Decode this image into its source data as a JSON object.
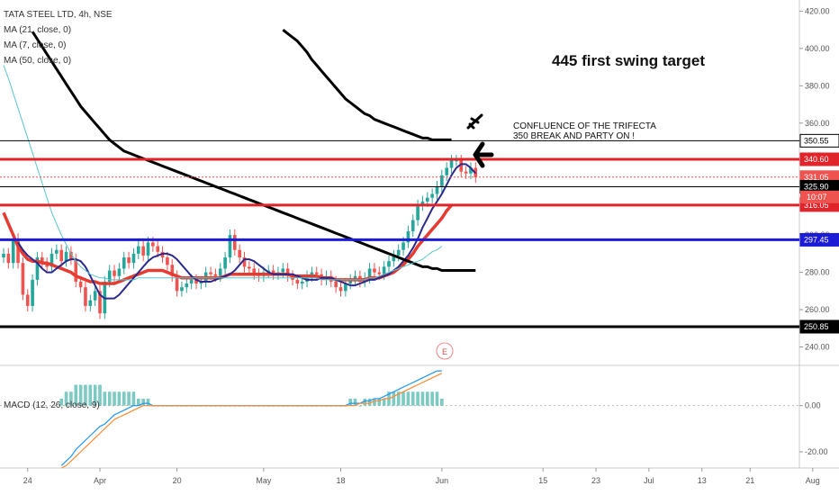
{
  "header": {
    "symbol_line": "TATA STEEL LTD, 4h, NSE",
    "studies": [
      "MA (21, close, 0)",
      "MA (7, close, 0)",
      "MA (50, close, 0)"
    ],
    "macd_label": "MACD (12, 26, close, 9)"
  },
  "annotations": {
    "target": "445 first swing target",
    "confluence_line1": "CONFLUENCE OF THE TRIFECTA",
    "confluence_line2": "350 BREAK AND PARTY ON !",
    "earnings_marker": "E",
    "arrow_icon": "left-arrow-icon",
    "plane_icon": "airplane-icon"
  },
  "colors": {
    "red_level": "#e0242a",
    "blue_level": "#1c1cd6",
    "black_level": "#000000",
    "ma7": "#2b2a8c",
    "ma21": "#e43b32",
    "ma50": "#000000",
    "teal_ma": "#58c6cc",
    "up_candle": "#26a69a",
    "down_candle": "#ef5350",
    "macd_line": "#2196f3",
    "signal_line": "#ff8a33"
  },
  "chart_data": {
    "type": "line",
    "title": "TATA STEEL LTD, 4h, NSE",
    "price_axis": {
      "ticks": [
        240,
        260,
        280,
        300,
        320,
        340,
        360,
        380,
        400,
        420
      ],
      "tick_labels": [
        "240.00",
        "260.00",
        "280.00",
        "300.00",
        "320.00",
        "340.00",
        "360.00",
        "380.00",
        "400.00",
        "420.00"
      ],
      "ylim": [
        233,
        426
      ]
    },
    "price_labels": [
      {
        "value": 350.55,
        "label": "350.55",
        "color": "#000000",
        "text_color": "#000000"
      },
      {
        "value": 340.6,
        "label": "340.60",
        "color": "#e0242a",
        "text_color": "#ffffff"
      },
      {
        "value": 331.05,
        "label": "331.05",
        "color": "#ef5350",
        "text_color": "#ffffff"
      },
      {
        "value": 325.9,
        "label": "325.90",
        "color": "#000000",
        "text_color": "#ffffff"
      },
      {
        "value": 316.05,
        "label": "316.05",
        "color": "#e0242a",
        "text_color": "#ffffff"
      },
      {
        "value": 297.45,
        "label": "297.45",
        "color": "#1c1cd6",
        "text_color": "#ffffff"
      },
      {
        "value": 250.85,
        "label": "250.85",
        "color": "#000000",
        "text_color": "#ffffff"
      }
    ],
    "countdown_label": "10:07",
    "horizontal_levels": [
      {
        "value": 350.55,
        "color": "#000000",
        "style": "thin"
      },
      {
        "value": 340.6,
        "color": "#e0242a",
        "style": "thick"
      },
      {
        "value": 331.05,
        "color": "#ef5350",
        "style": "dotted"
      },
      {
        "value": 325.9,
        "color": "#000000",
        "style": "thin"
      },
      {
        "value": 316.05,
        "color": "#e0242a",
        "style": "thick"
      },
      {
        "value": 297.45,
        "color": "#1c1cd6",
        "style": "thick"
      },
      {
        "value": 250.85,
        "color": "#000000",
        "style": "thick"
      }
    ],
    "x_axis": {
      "tick_labels": [
        "24",
        "Apr",
        "20",
        "May",
        "18",
        "Jun",
        "15",
        "23",
        "Jul",
        "13",
        "21",
        "Aug"
      ],
      "tick_index": [
        5,
        20,
        36,
        54,
        70,
        91,
        112,
        123,
        134,
        145,
        155,
        168
      ]
    },
    "candles_close": [
      290,
      285,
      298,
      285,
      268,
      262,
      276,
      288,
      285,
      283,
      290,
      292,
      286,
      291,
      287,
      275,
      272,
      262,
      265,
      270,
      258,
      275,
      281,
      278,
      282,
      288,
      285,
      290,
      294,
      289,
      296,
      294,
      291,
      288,
      284,
      278,
      270,
      272,
      274,
      276,
      274,
      275,
      280,
      279,
      278,
      282,
      288,
      300,
      292,
      288,
      283,
      282,
      279,
      278,
      280,
      281,
      279,
      280,
      282,
      278,
      276,
      274,
      275,
      278,
      280,
      279,
      276,
      278,
      275,
      272,
      270,
      274,
      276,
      278,
      275,
      277,
      282,
      280,
      279,
      283,
      286,
      289,
      292,
      296,
      302,
      308,
      316,
      318,
      320,
      322,
      326,
      332,
      336,
      340,
      340,
      334,
      333,
      336,
      331
    ],
    "series": [
      {
        "name": "MA (21, close, 0)",
        "values": [
          312,
          306,
          300,
          294,
          290,
          287,
          286,
          286,
          285,
          285,
          284,
          283,
          282,
          281,
          280,
          278,
          277,
          276,
          275,
          275,
          274,
          274,
          274,
          274,
          275,
          276,
          277,
          278,
          279,
          280,
          281,
          281,
          281,
          281,
          280,
          279,
          278,
          277,
          277,
          277,
          277,
          277,
          277,
          277,
          277,
          277,
          278,
          279,
          279,
          279,
          279,
          279,
          279,
          279,
          279,
          279,
          279,
          279,
          279,
          279,
          278,
          278,
          278,
          278,
          278,
          278,
          277,
          277,
          277,
          276,
          276,
          276,
          276,
          276,
          276,
          276,
          277,
          277,
          277,
          278,
          279,
          280,
          282,
          284,
          287,
          290,
          294,
          297,
          300,
          303,
          306,
          309,
          313,
          316
        ]
      },
      {
        "name": "MA (7, close, 0)",
        "values": [
          296,
          292,
          289,
          287,
          285,
          282,
          280,
          280,
          282,
          284,
          286,
          287,
          287,
          286,
          283,
          278,
          273,
          268,
          266,
          266,
          266,
          268,
          271,
          274,
          277,
          280,
          283,
          286,
          288,
          289,
          290,
          290,
          289,
          287,
          284,
          281,
          278,
          276,
          275,
          275,
          275,
          276,
          277,
          278,
          279,
          281,
          284,
          287,
          287,
          286,
          284,
          282,
          280,
          279,
          279,
          279,
          279,
          279,
          278,
          277,
          276,
          276,
          276,
          277,
          277,
          277,
          276,
          275,
          274,
          273,
          273,
          274,
          275,
          276,
          276,
          277,
          278,
          279,
          281,
          283,
          286,
          289,
          293,
          298,
          304,
          309,
          314,
          318,
          322,
          327,
          332,
          336,
          338,
          338,
          336,
          333
        ]
      },
      {
        "name": "MA (50, close, 0)",
        "values": [
          409,
          405,
          401,
          397,
          393,
          389,
          385,
          381,
          377,
          373,
          369,
          366,
          363,
          360,
          357,
          354,
          351,
          349,
          347,
          345,
          344,
          343,
          342,
          341,
          340,
          339,
          338,
          337,
          336,
          335,
          334,
          333,
          332,
          331,
          330,
          329,
          328,
          327,
          326,
          325,
          324,
          323,
          322,
          321,
          320,
          319,
          318,
          317,
          316,
          315,
          314,
          313,
          312,
          311,
          310,
          309,
          308,
          307,
          306,
          305,
          304,
          303,
          302,
          301,
          300,
          299,
          298,
          297,
          296,
          295,
          294,
          293,
          292,
          291,
          290,
          289,
          288,
          287,
          286,
          285,
          284,
          283,
          283,
          282,
          282,
          281,
          281,
          281,
          281,
          281,
          281,
          281,
          281
        ]
      },
      {
        "name": "",
        "values": [
          391,
          384,
          376,
          368,
          360,
          352,
          344,
          336,
          328,
          320,
          312,
          306,
          300,
          295,
          290,
          286,
          283,
          281,
          279,
          278,
          277,
          277,
          276,
          276,
          276,
          276,
          276,
          276,
          277,
          277,
          277,
          277,
          277,
          277,
          277,
          277,
          277,
          277,
          277,
          277,
          277,
          277,
          277,
          277,
          277,
          277,
          277,
          277,
          277,
          277,
          277,
          277,
          277,
          277,
          277,
          277,
          277,
          277,
          277,
          277,
          277,
          277,
          277,
          277,
          277,
          277,
          276,
          276,
          276,
          276,
          276,
          276,
          276,
          276,
          276,
          276,
          277,
          277,
          278,
          279,
          280,
          281,
          282,
          283,
          284,
          285,
          286,
          287,
          289,
          291,
          292,
          294
        ]
      },
      {
        "name": "",
        "values": [
          410,
          408,
          406,
          404,
          401,
          398,
          394,
          391,
          388,
          385,
          382,
          379,
          376,
          373,
          371,
          369,
          367,
          365,
          364,
          362,
          361,
          360,
          359,
          358,
          357,
          356,
          355,
          354,
          353,
          352,
          352,
          351,
          351,
          351,
          351,
          351
        ]
      }
    ],
    "macd": {
      "name": "MACD (12, 26, close, 9)",
      "ticks": [
        -20,
        0
      ],
      "tick_labels": [
        "-20.00",
        "0.00"
      ],
      "ylim": [
        -27,
        17
      ],
      "macd_line": [
        -26,
        -24,
        -22,
        -19,
        -17,
        -15,
        -13,
        -11,
        -9,
        -8,
        -6,
        -4,
        -3,
        -2,
        -1,
        0,
        0,
        1,
        1,
        0,
        0,
        0,
        0,
        0,
        0,
        0,
        0,
        0,
        0,
        0,
        0,
        0,
        0,
        0,
        0,
        0,
        0,
        0,
        0,
        0,
        0,
        0,
        0,
        0,
        0,
        0,
        0,
        0,
        0,
        0,
        0,
        0,
        0,
        0,
        0,
        0,
        0,
        0,
        0,
        0,
        1,
        1,
        1,
        2,
        2,
        3,
        3,
        4,
        5,
        6,
        7,
        8,
        9,
        10,
        11,
        12,
        13,
        14,
        15,
        15
      ],
      "signal_line": [
        -27,
        -26,
        -24,
        -22,
        -20,
        -18,
        -16,
        -14,
        -12,
        -10,
        -8,
        -6,
        -5,
        -4,
        -3,
        -2,
        -1,
        0,
        0,
        0,
        0,
        0,
        0,
        0,
        0,
        0,
        0,
        0,
        0,
        0,
        0,
        0,
        0,
        0,
        0,
        0,
        0,
        0,
        0,
        0,
        0,
        0,
        0,
        0,
        0,
        0,
        0,
        0,
        0,
        0,
        0,
        0,
        0,
        0,
        0,
        0,
        0,
        0,
        0,
        0,
        0,
        0,
        1,
        1,
        1,
        2,
        2,
        3,
        3,
        4,
        5,
        6,
        7,
        8,
        9,
        10,
        11,
        12,
        13,
        14
      ]
    }
  }
}
